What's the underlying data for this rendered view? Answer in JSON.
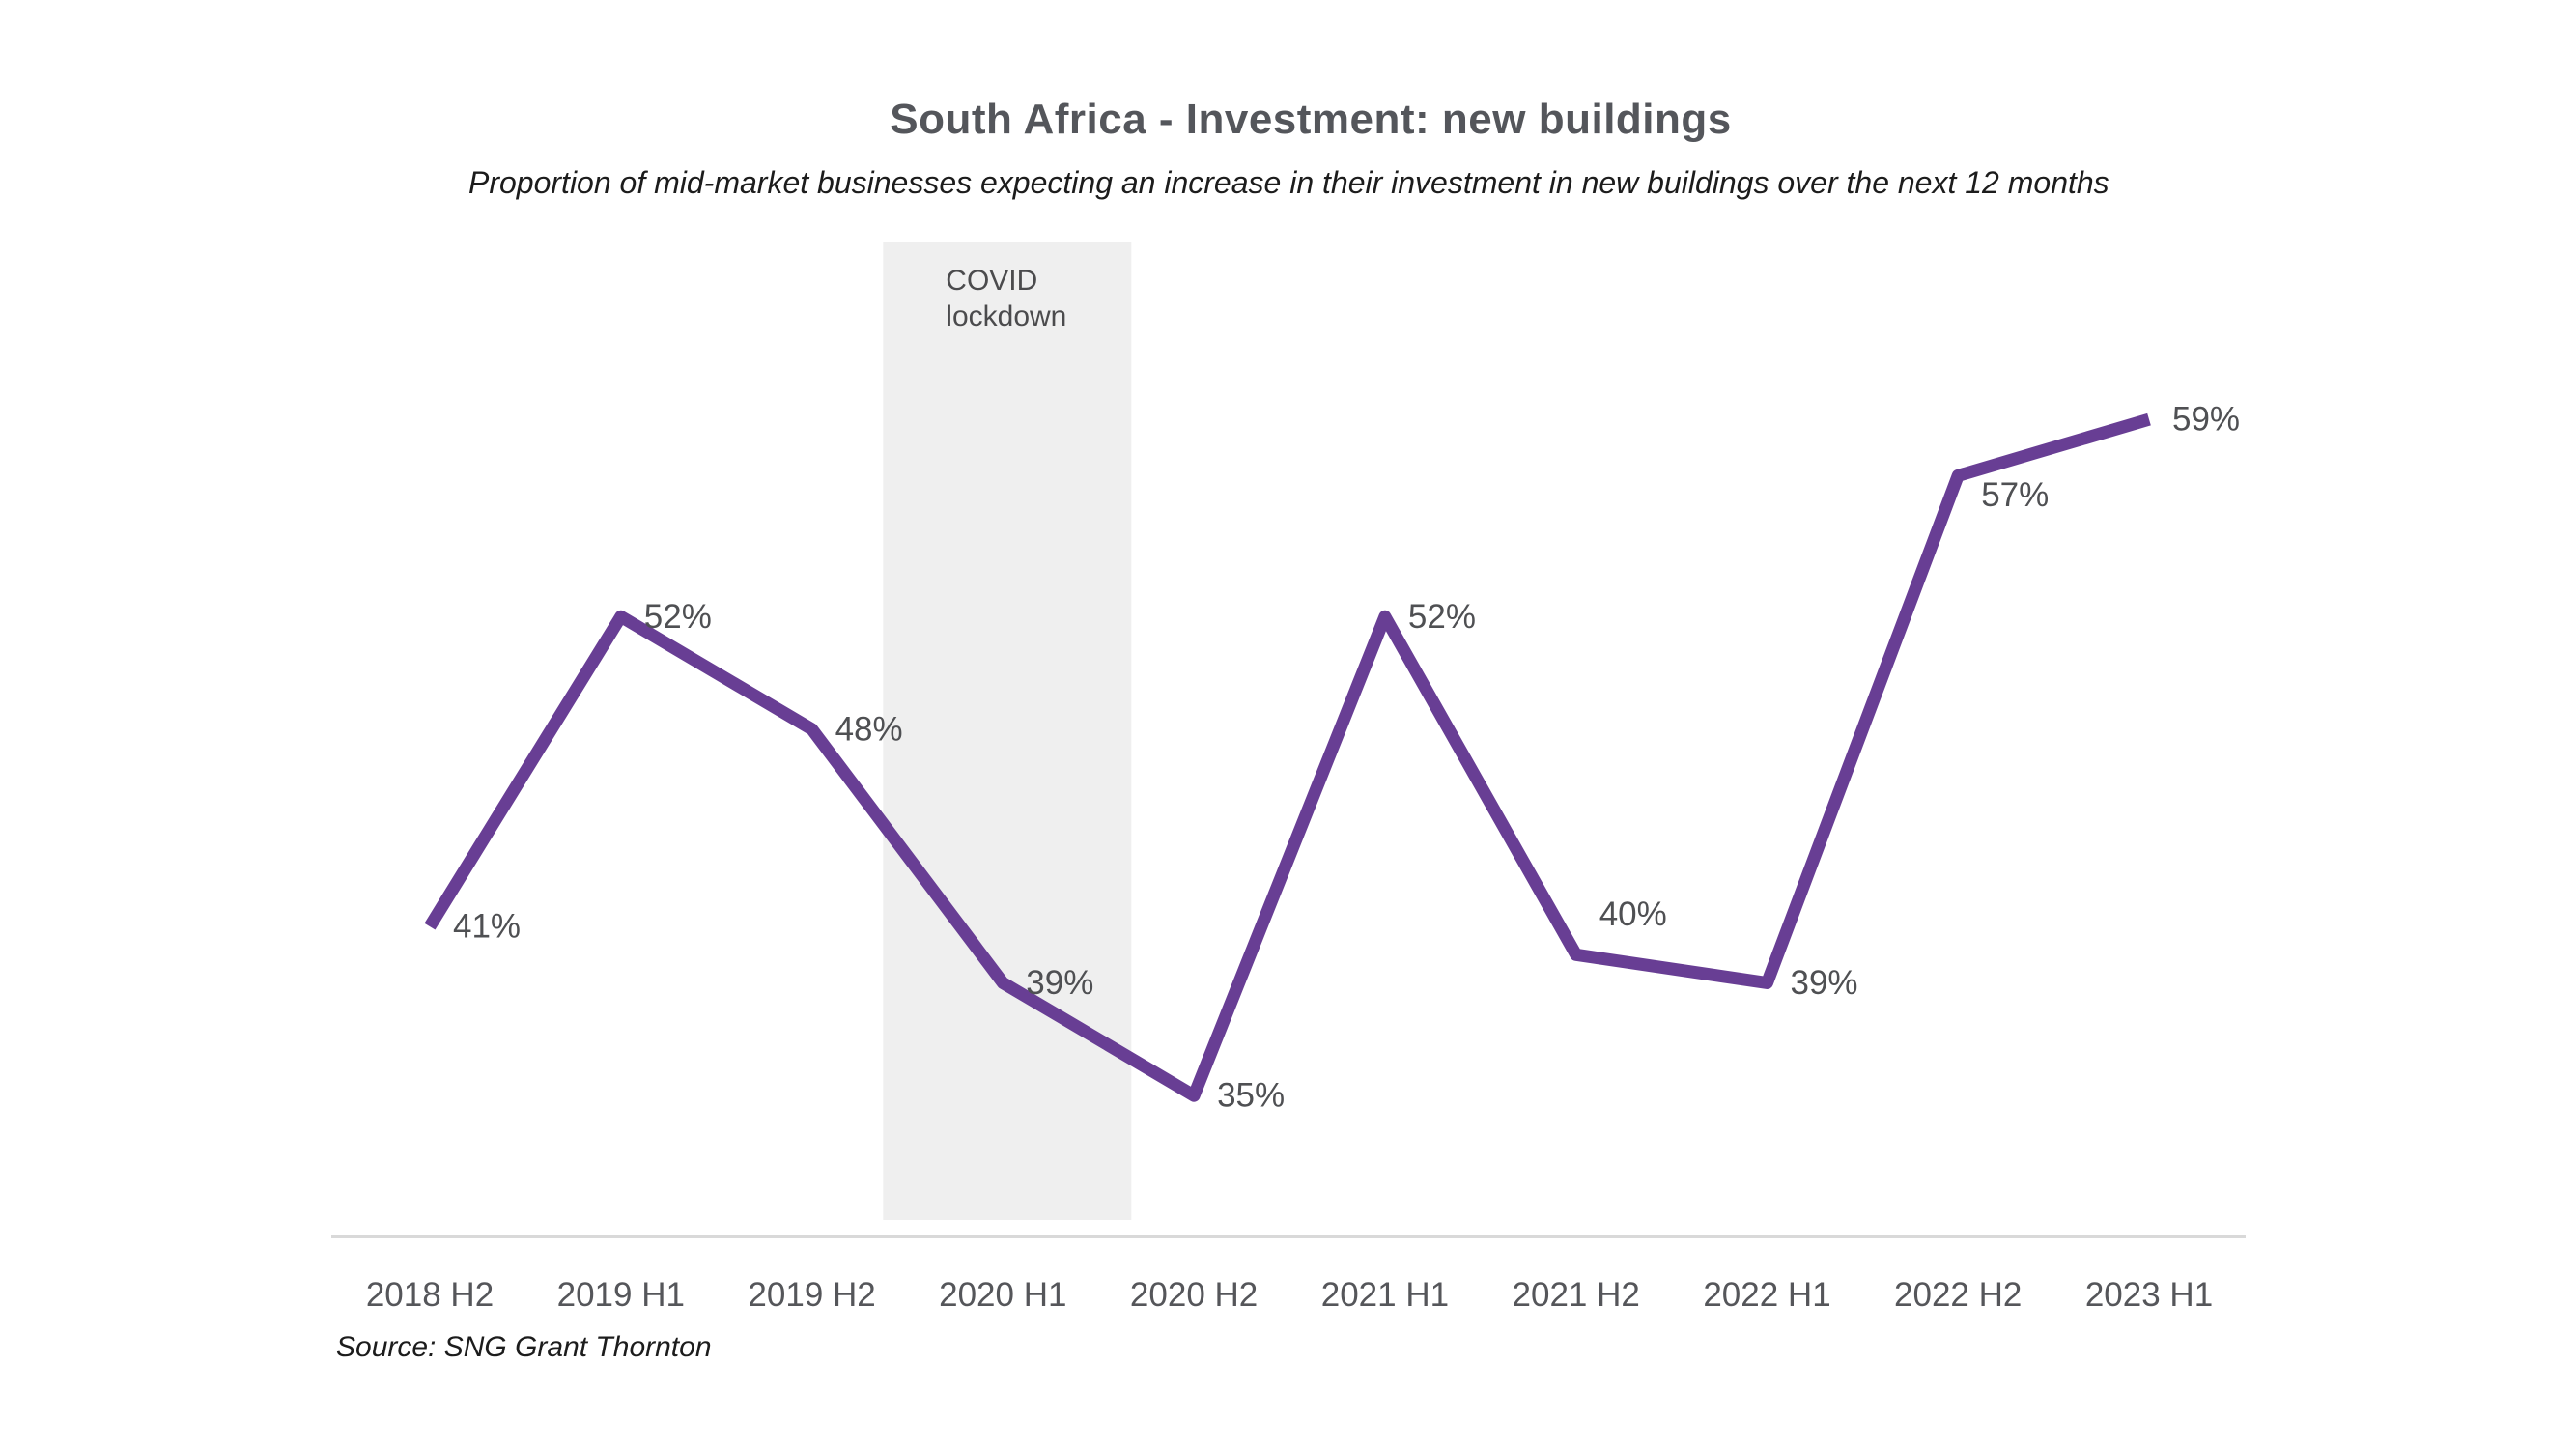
{
  "page": {
    "background": "#FFFFFF"
  },
  "chart_data": {
    "type": "line",
    "title": "South Africa - Investment: new buildings",
    "subtitle": "Proportion of mid-market businesses expecting an increase in their investment in new buildings over the next 12 months",
    "source": "Source: SNG Grant Thornton",
    "xlabel": "",
    "ylabel": "",
    "unit": "%",
    "ylim": [
      30,
      62
    ],
    "grid": false,
    "legend": false,
    "categories": [
      "2018 H2",
      "2019 H1",
      "2019 H2",
      "2020 H1",
      "2020 H2",
      "2021 H1",
      "2021 H2",
      "2022 H1",
      "2022 H2",
      "2023 H1"
    ],
    "values": [
      41,
      52,
      48,
      39,
      35,
      52,
      40,
      39,
      57,
      59
    ],
    "annotation_band": {
      "label": "COVID lockdown",
      "category": "2020 H1"
    },
    "colors": {
      "line": "#683E94",
      "band": "#EFEFEF",
      "band_label": "#4B4B4D",
      "axis": "#D9D9D9",
      "tick": "#55565A",
      "data_label": "#4F5053",
      "title": "#54565B",
      "text": "#1C1C1C"
    }
  }
}
